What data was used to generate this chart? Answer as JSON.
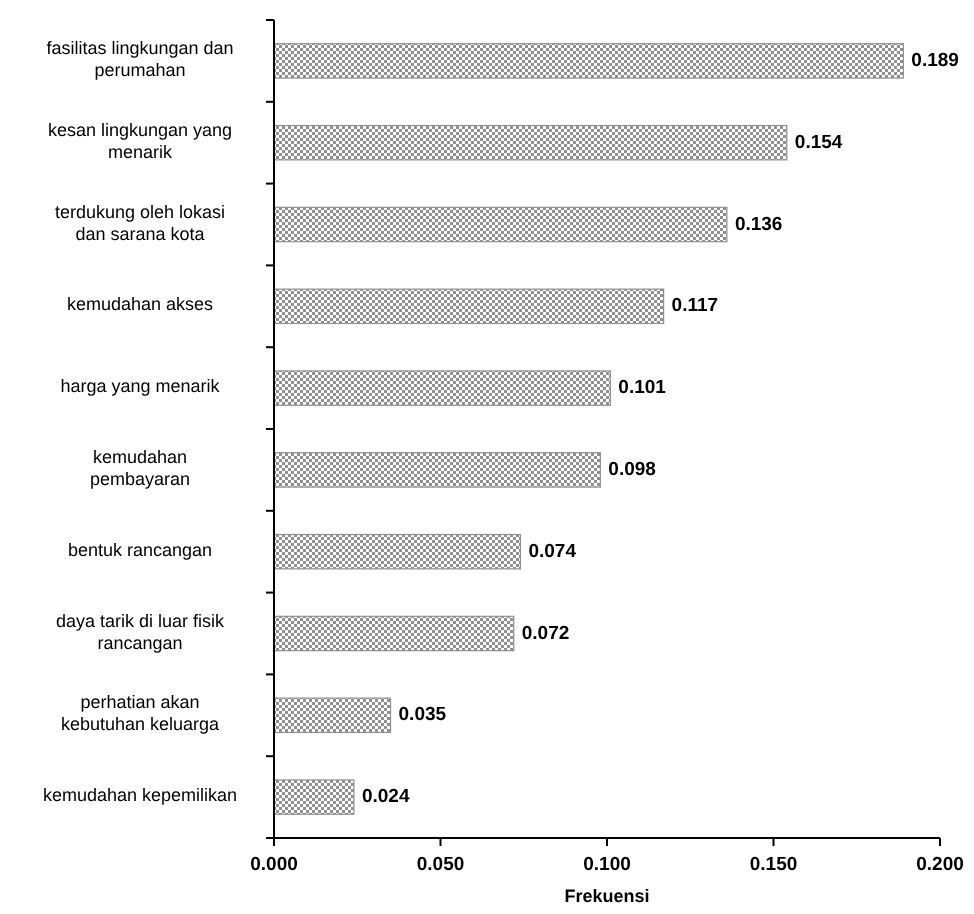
{
  "chart_data": {
    "type": "bar",
    "orientation": "horizontal",
    "xlabel": "Frekuensi",
    "categories": [
      "fasilitas lingkungan dan\nperumahan",
      "kesan lingkungan yang\nmenarik",
      "terdukung oleh lokasi\ndan sarana kota",
      "kemudahan akses",
      "harga yang menarik",
      "kemudahan\npembayaran",
      "bentuk rancangan",
      "daya tarik di luar fisik\nrancangan",
      "perhatian akan\nkebutuhan keluarga",
      "kemudahan kepemilikan"
    ],
    "values": [
      0.189,
      0.154,
      0.136,
      0.117,
      0.101,
      0.098,
      0.074,
      0.072,
      0.035,
      0.024
    ],
    "color": "#909090",
    "data_labels": true,
    "grid": false,
    "xlim": [
      0,
      0.2
    ],
    "xticks": [
      {
        "value": 0,
        "label": "0.000"
      },
      {
        "value": 0.05,
        "label": "0.050"
      },
      {
        "value": 0.1,
        "label": "0.100"
      },
      {
        "value": 0.15,
        "label": "0.150"
      },
      {
        "value": 0.2,
        "label": "0.200"
      }
    ]
  }
}
